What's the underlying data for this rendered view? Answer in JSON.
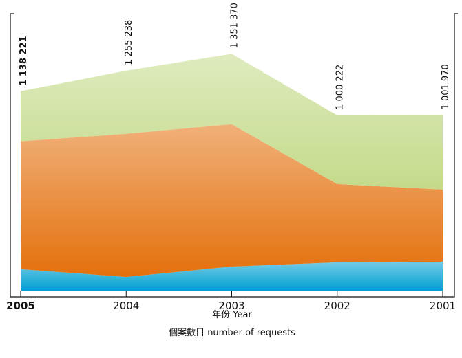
{
  "chart_data": {
    "type": "stacked-area",
    "categories": [
      "2005",
      "2004",
      "2003",
      "2002",
      "2001"
    ],
    "series": [
      {
        "color": "#00a0d2",
        "values": [
          122000,
          78000,
          137000,
          161000,
          165000
        ]
      },
      {
        "color": "#e4700c",
        "values": [
          730000,
          817000,
          813000,
          447000,
          412000
        ]
      },
      {
        "color": "#c4da8a",
        "values": [
          286221,
          360238,
          401370,
          392222,
          424970
        ]
      }
    ],
    "totals": {
      "values": [
        1138221,
        1255238,
        1351370,
        1000222,
        1001970
      ],
      "value_labels": [
        "1 138 221",
        "1 255 238",
        "1 351 370",
        "1 000 222",
        "1 001 970"
      ]
    },
    "ylim": [
      0,
      1580000
    ],
    "xlabel": "年份  Year",
    "ylabel": "個案數目  number of requests"
  }
}
